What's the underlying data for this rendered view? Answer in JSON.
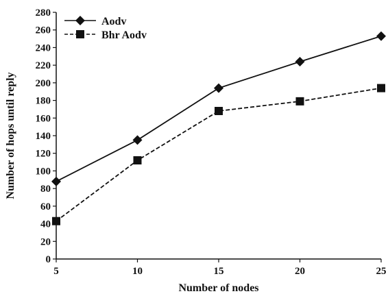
{
  "chart_data": {
    "type": "line",
    "title": "",
    "xlabel": "Number of nodes",
    "ylabel": "Number of hops until reply",
    "x": [
      5,
      10,
      15,
      20,
      25
    ],
    "xticks": [
      "5",
      "10",
      "15",
      "20",
      "25"
    ],
    "ylim": [
      0,
      280
    ],
    "yticks": [
      "0",
      "20",
      "40",
      "60",
      "80",
      "100",
      "120",
      "140",
      "160",
      "180",
      "200",
      "220",
      "240",
      "260",
      "280"
    ],
    "grid": false,
    "legend_position": "top-left",
    "series": [
      {
        "name": "Aodv",
        "values": [
          88,
          135,
          194,
          224,
          253
        ],
        "marker": "diamond",
        "line_style": "solid",
        "color": "#111111"
      },
      {
        "name": "Bhr Aodv",
        "values": [
          43,
          112,
          168,
          179,
          194
        ],
        "marker": "square",
        "line_style": "dashed",
        "color": "#111111"
      }
    ]
  }
}
